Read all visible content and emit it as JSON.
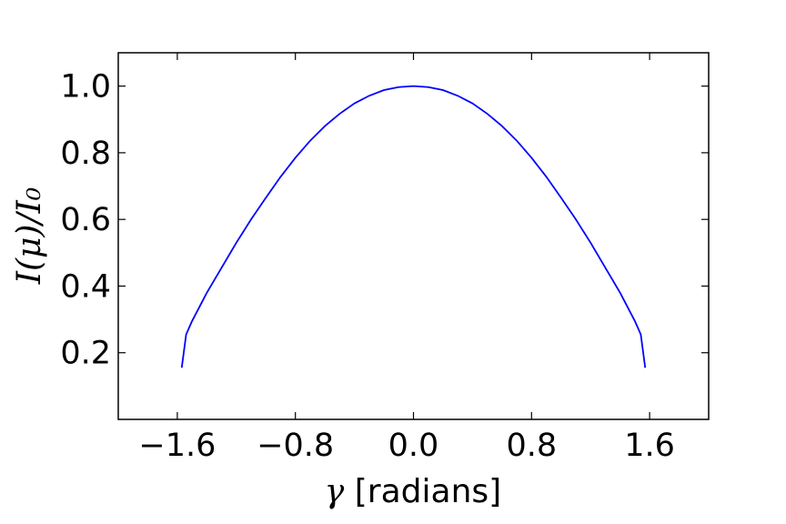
{
  "chart_data": {
    "type": "line",
    "title": "",
    "xlabel_symbol": "γ",
    "xlabel_text": " [radians]",
    "ylabel": "I(μ)/I₀",
    "xlim": [
      -2.0,
      2.0
    ],
    "ylim": [
      0.0,
      1.1
    ],
    "xticks": [
      -1.6,
      -0.8,
      0.0,
      0.8,
      1.6
    ],
    "xtick_labels": [
      "−1.6",
      "−0.8",
      "0.0",
      "0.8",
      "1.6"
    ],
    "yticks": [
      0.2,
      0.4,
      0.6,
      0.8,
      1.0
    ],
    "ytick_labels": [
      "0.2",
      "0.4",
      "0.6",
      "0.8",
      "1.0"
    ],
    "grid": false,
    "series": [
      {
        "color": "#0000ff",
        "x": [
          -1.57,
          -1.54,
          -1.5,
          -1.4,
          -1.3,
          -1.2,
          -1.1,
          -1.0,
          -0.9,
          -0.8,
          -0.7,
          -0.6,
          -0.5,
          -0.4,
          -0.3,
          -0.2,
          -0.1,
          0.0,
          0.1,
          0.2,
          0.3,
          0.4,
          0.5,
          0.6,
          0.7,
          0.8,
          0.9,
          1.0,
          1.1,
          1.2,
          1.3,
          1.4,
          1.5,
          1.54,
          1.57
        ],
        "y": [
          0.155,
          0.255,
          0.295,
          0.38,
          0.455,
          0.53,
          0.6,
          0.665,
          0.728,
          0.785,
          0.836,
          0.88,
          0.917,
          0.948,
          0.971,
          0.988,
          0.997,
          1.0,
          0.997,
          0.988,
          0.971,
          0.948,
          0.917,
          0.88,
          0.836,
          0.785,
          0.728,
          0.665,
          0.6,
          0.53,
          0.455,
          0.38,
          0.295,
          0.255,
          0.155
        ]
      }
    ]
  }
}
